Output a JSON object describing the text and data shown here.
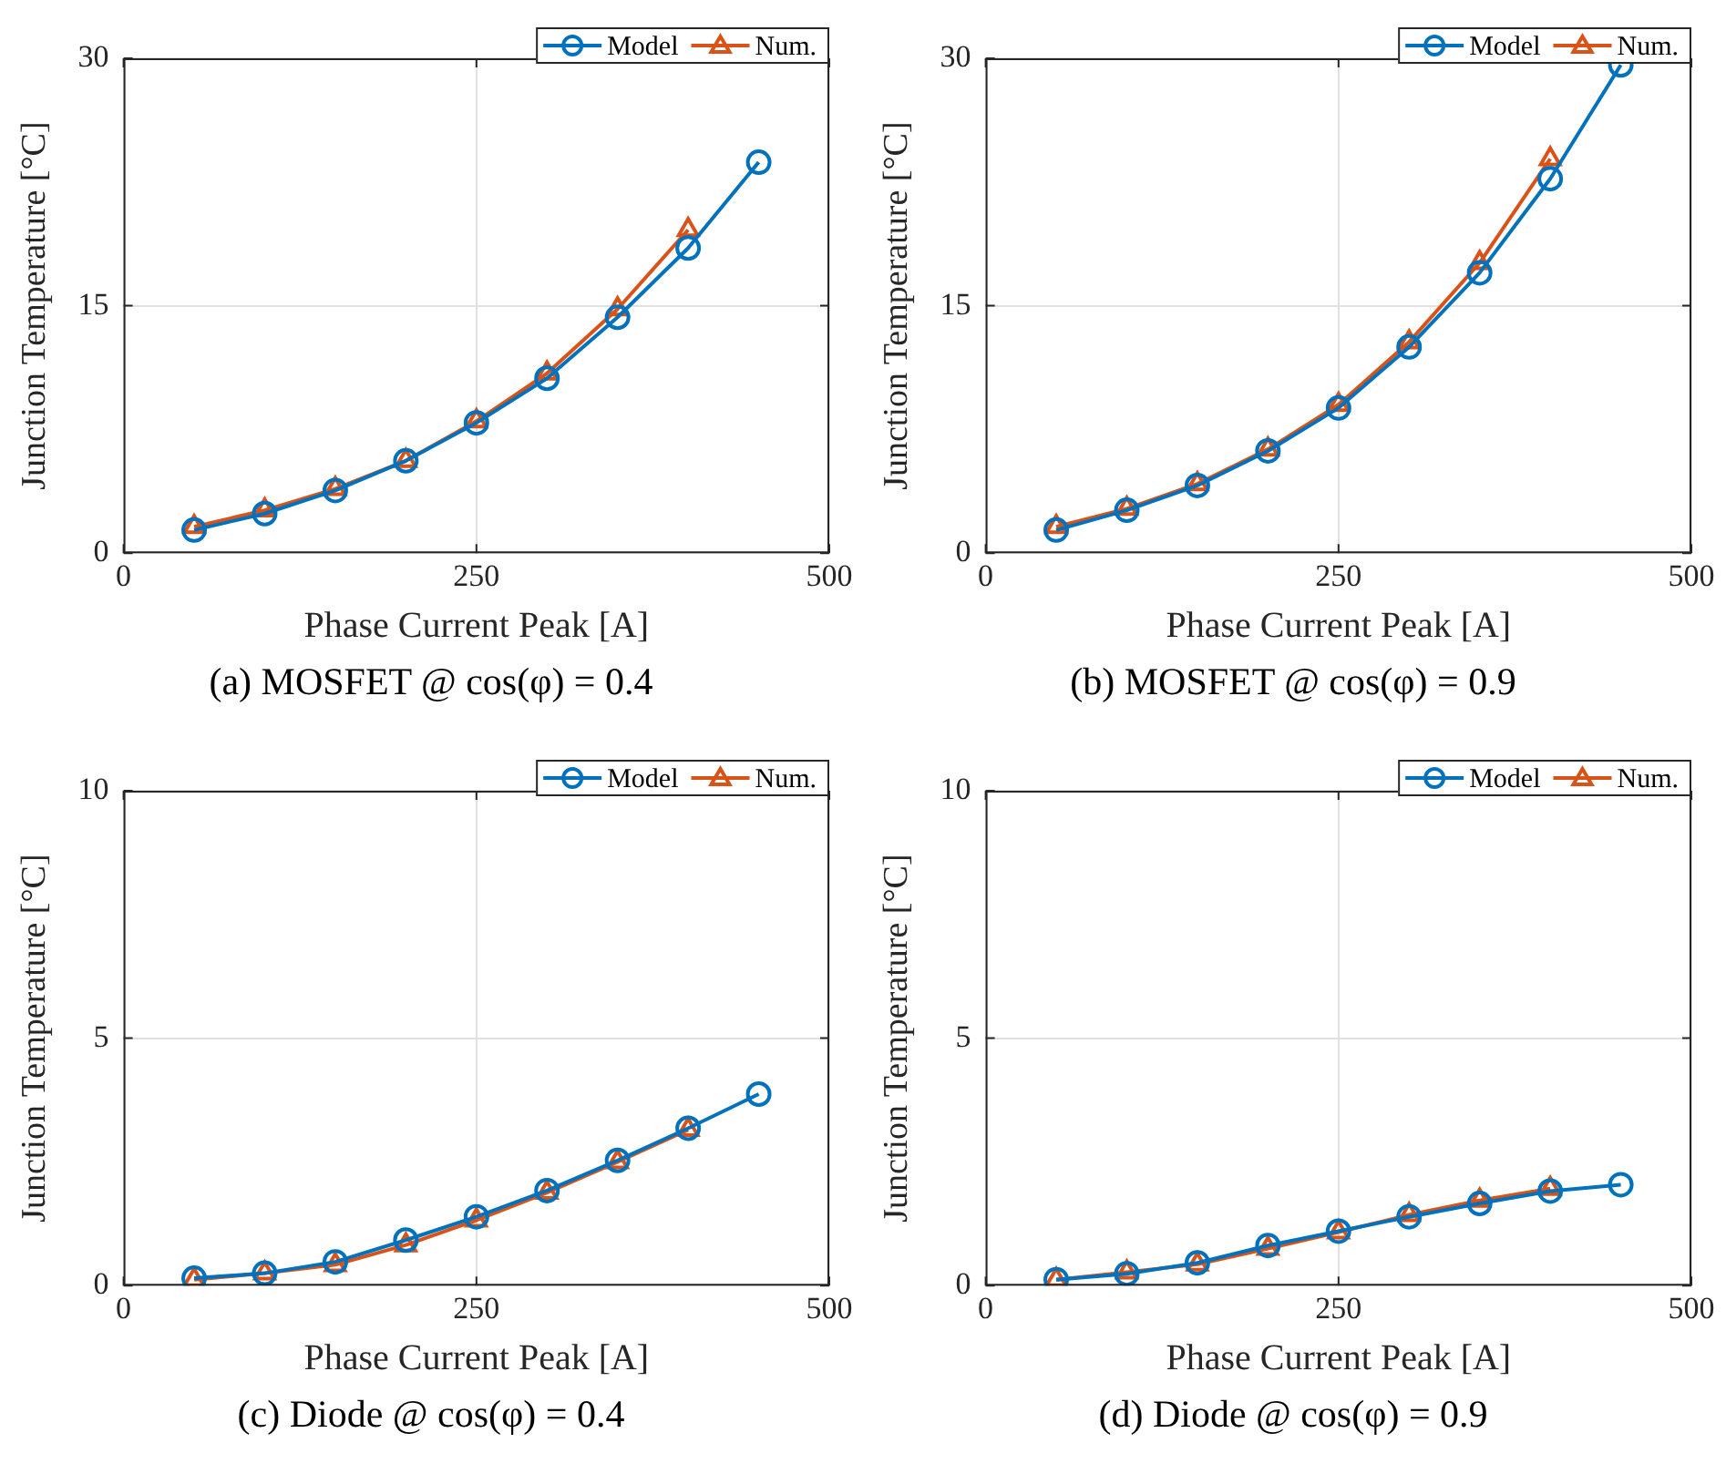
{
  "chart_data": [
    {
      "type": "line",
      "title": "(a)  MOSFET @ cos(φ) = 0.4",
      "xlabel": "Phase Current Peak [A]",
      "ylabel": "Junction Temperature [°C]",
      "x": [
        50,
        100,
        150,
        200,
        250,
        300,
        350,
        400,
        450
      ],
      "xlim": [
        0,
        500
      ],
      "xticks": [
        0,
        250,
        500
      ],
      "ylim": [
        0,
        30
      ],
      "yticks": [
        0,
        15,
        30
      ],
      "grid": true,
      "legend": "top right",
      "line_style": "solid",
      "series": [
        {
          "name": "Model",
          "color": "#0072bd",
          "marker": "circle",
          "values": [
            1.4,
            2.4,
            3.8,
            5.6,
            7.9,
            10.6,
            14.3,
            18.5,
            23.7
          ]
        },
        {
          "name": "Num.",
          "color": "#d95319",
          "marker": "triangle",
          "values": [
            1.6,
            2.6,
            3.9,
            5.6,
            8.0,
            10.9,
            14.8,
            19.6,
            null
          ]
        }
      ]
    },
    {
      "type": "line",
      "title": "(b)  MOSFET @ cos(φ) = 0.9",
      "xlabel": "Phase Current Peak [A]",
      "ylabel": "Junction Temperature [°C]",
      "x": [
        50,
        100,
        150,
        200,
        250,
        300,
        350,
        400,
        450
      ],
      "xlim": [
        0,
        500
      ],
      "xticks": [
        0,
        250,
        500
      ],
      "ylim": [
        0,
        30
      ],
      "yticks": [
        0,
        15,
        30
      ],
      "grid": true,
      "legend": "top right",
      "line_style": "solid",
      "series": [
        {
          "name": "Model",
          "color": "#0072bd",
          "marker": "circle",
          "values": [
            1.4,
            2.6,
            4.1,
            6.2,
            8.8,
            12.5,
            17.0,
            22.7,
            29.6
          ]
        },
        {
          "name": "Num.",
          "color": "#d95319",
          "marker": "triangle",
          "values": [
            1.6,
            2.7,
            4.2,
            6.3,
            9.0,
            12.8,
            17.6,
            23.9,
            null
          ]
        }
      ]
    },
    {
      "type": "line",
      "title": "(c)  Diode @ cos(φ) = 0.4",
      "xlabel": "Phase Current Peak [A]",
      "ylabel": "Junction Temperature [°C]",
      "x": [
        50,
        100,
        150,
        200,
        250,
        300,
        350,
        400,
        450
      ],
      "xlim": [
        0,
        500
      ],
      "xticks": [
        0,
        250,
        500
      ],
      "ylim": [
        0,
        10
      ],
      "yticks": [
        0,
        5,
        10
      ],
      "grid": true,
      "legend": "top right",
      "line_style": "solid",
      "series": [
        {
          "name": "Model",
          "color": "#0072bd",
          "marker": "circle",
          "values": [
            0.15,
            0.25,
            0.48,
            0.92,
            1.39,
            1.92,
            2.53,
            3.18,
            3.87
          ]
        },
        {
          "name": "Num.",
          "color": "#d95319",
          "marker": "triangle",
          "values": [
            0.12,
            0.25,
            0.42,
            0.82,
            1.32,
            1.88,
            2.5,
            3.15,
            null
          ]
        }
      ]
    },
    {
      "type": "line",
      "title": "(d)  Diode @ cos(φ) = 0.9",
      "xlabel": "Phase Current Peak [A]",
      "ylabel": "Junction Temperature [°C]",
      "x": [
        50,
        100,
        150,
        200,
        250,
        300,
        350,
        400,
        450
      ],
      "xlim": [
        0,
        500
      ],
      "xticks": [
        0,
        250,
        500
      ],
      "ylim": [
        0,
        10
      ],
      "yticks": [
        0,
        5,
        10
      ],
      "grid": true,
      "legend": "top right",
      "line_style": "solid",
      "series": [
        {
          "name": "Model",
          "color": "#0072bd",
          "marker": "circle",
          "values": [
            0.12,
            0.24,
            0.46,
            0.81,
            1.1,
            1.39,
            1.66,
            1.91,
            2.04
          ]
        },
        {
          "name": "Num.",
          "color": "#d95319",
          "marker": "triangle",
          "values": [
            0.12,
            0.27,
            0.43,
            0.75,
            1.08,
            1.43,
            1.72,
            1.96,
            null
          ]
        }
      ]
    }
  ]
}
